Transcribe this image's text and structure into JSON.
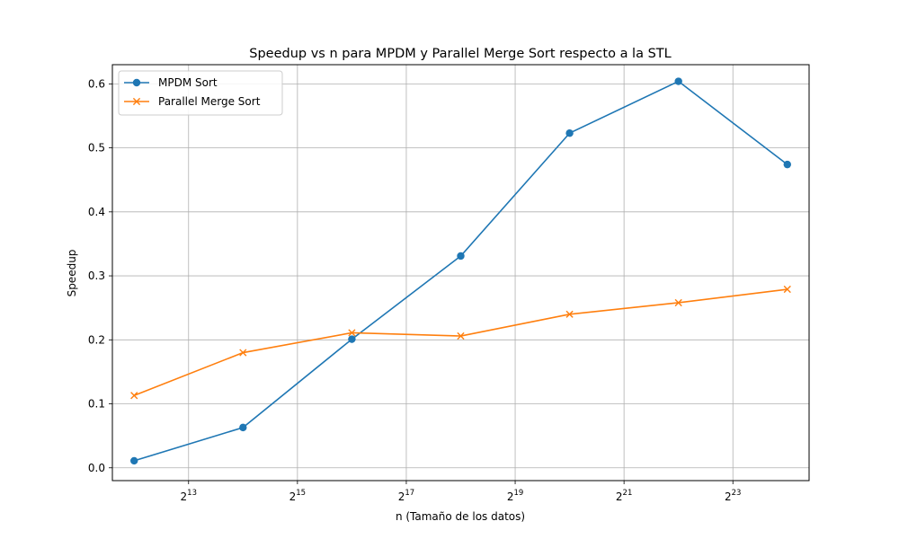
{
  "chart_data": {
    "type": "line",
    "title": "Speedup vs n para MPDM y Parallel Merge Sort respecto a la STL",
    "xlabel": "n (Tamaño de los datos)",
    "ylabel": "Speedup",
    "x_scale": "log2",
    "x_exponents": [
      12,
      14,
      16,
      18,
      20,
      22,
      24
    ],
    "x_tick_base": "2",
    "x_tick_exponents": [
      "13",
      "15",
      "17",
      "19",
      "21",
      "23"
    ],
    "y_ticks": [
      "0.0",
      "0.1",
      "0.2",
      "0.3",
      "0.4",
      "0.5",
      "0.6"
    ],
    "ylim": [
      -0.02,
      0.63
    ],
    "grid": true,
    "legend_position": "top-left",
    "series": [
      {
        "name": "MPDM Sort",
        "color": "#1f77b4",
        "marker": "circle",
        "values": [
          0.011,
          0.063,
          0.201,
          0.331,
          0.523,
          0.604,
          0.474
        ]
      },
      {
        "name": "Parallel Merge Sort",
        "color": "#ff7f0e",
        "marker": "x",
        "values": [
          0.113,
          0.18,
          0.211,
          0.206,
          0.24,
          0.258,
          0.279
        ]
      }
    ]
  }
}
